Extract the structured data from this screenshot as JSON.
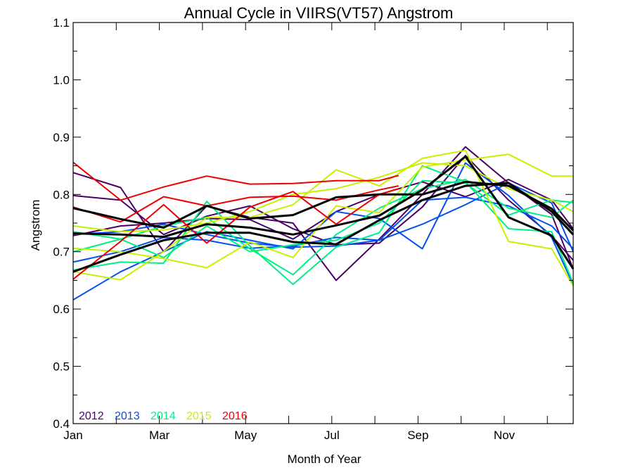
{
  "chart_data": {
    "type": "line",
    "title": "Annual Cycle in VIIRS(VT57) Angstrom",
    "xlabel": "Month of Year",
    "ylabel": "Angstrom",
    "xlim": [
      1,
      12.6
    ],
    "ylim": [
      0.4,
      1.1
    ],
    "x_ticks": [
      {
        "value": 1,
        "label": "Jan"
      },
      {
        "value": 3,
        "label": "Mar"
      },
      {
        "value": 5,
        "label": "May"
      },
      {
        "value": 7,
        "label": "Jul"
      },
      {
        "value": 9,
        "label": "Sep"
      },
      {
        "value": 11,
        "label": "Nov"
      }
    ],
    "x_minor_ticks": [
      2,
      4,
      6,
      8,
      10,
      12
    ],
    "y_ticks": [
      0.4,
      0.5,
      0.6,
      0.7,
      0.8,
      0.9,
      1.0,
      1.1
    ],
    "grid": false,
    "legend": {
      "placement": "bottom-left",
      "entries": [
        {
          "label": "2012",
          "color": "#4b0066"
        },
        {
          "label": "2013",
          "color": "#0050f0"
        },
        {
          "label": "2014",
          "color": "#00f080"
        },
        {
          "label": "2015",
          "color": "#c8f000"
        },
        {
          "label": "2016",
          "color": "#f00000"
        }
      ]
    },
    "series": [
      {
        "group": "2012",
        "color": "#4b0066",
        "width": 2,
        "x": [
          1,
          2.1,
          3.1,
          4.1,
          5.1,
          6.1,
          7.1,
          8.1,
          9.1,
          10.1,
          11.1,
          12.1,
          12.6
        ],
        "y": [
          0.838,
          0.812,
          0.7,
          0.78,
          0.76,
          0.75,
          0.65,
          0.722,
          0.8,
          0.883,
          0.82,
          0.765,
          0.67
        ]
      },
      {
        "group": "2012",
        "color": "#4b0066",
        "width": 2,
        "x": [
          1,
          2.1,
          3.1,
          4.1,
          5.1,
          6.1,
          7.1,
          8.1,
          9.1,
          10.1,
          11.1,
          12.1,
          12.6
        ],
        "y": [
          0.798,
          0.79,
          0.73,
          0.762,
          0.78,
          0.74,
          0.712,
          0.715,
          0.778,
          0.868,
          0.79,
          0.728,
          0.685
        ]
      },
      {
        "group": "2012",
        "color": "#4b0066",
        "width": 2,
        "x": [
          1,
          2.1,
          3.1,
          4.1,
          5.1,
          6.1,
          7.1,
          8.1,
          9.1,
          10.1,
          11.1,
          12.1,
          12.6
        ],
        "y": [
          0.728,
          0.745,
          0.75,
          0.758,
          0.756,
          0.722,
          0.77,
          0.8,
          0.822,
          0.796,
          0.826,
          0.79,
          0.74
        ]
      },
      {
        "group": "2013",
        "color": "#0050f0",
        "width": 2,
        "x": [
          1,
          2.1,
          3.1,
          4.1,
          5.1,
          6.1,
          7.1,
          8.1,
          9.1,
          10.1,
          11.1,
          12.1,
          12.6
        ],
        "y": [
          0.616,
          0.665,
          0.7,
          0.735,
          0.72,
          0.705,
          0.77,
          0.758,
          0.705,
          0.855,
          0.798,
          0.725,
          0.642
        ]
      },
      {
        "group": "2013",
        "color": "#0050f0",
        "width": 2,
        "x": [
          1,
          2.1,
          3.1,
          4.1,
          5.1,
          6.1,
          7.1,
          8.1,
          9.1,
          10.1,
          11.1,
          12.1,
          12.6
        ],
        "y": [
          0.682,
          0.7,
          0.725,
          0.72,
          0.706,
          0.71,
          0.725,
          0.72,
          0.748,
          0.782,
          0.82,
          0.785,
          0.7
        ]
      },
      {
        "group": "2013",
        "color": "#0050f0",
        "width": 2,
        "x": [
          1,
          2.1,
          3.1,
          4.1,
          5.1,
          6.1,
          7.1,
          8.1,
          9.1,
          10.1,
          11.1,
          12.1,
          12.6
        ],
        "y": [
          0.73,
          0.735,
          0.748,
          0.73,
          0.715,
          0.708,
          0.71,
          0.72,
          0.79,
          0.795,
          0.78,
          0.745,
          0.705
        ]
      },
      {
        "group": "2014",
        "color": "#00f080",
        "width": 2,
        "x": [
          1,
          2.1,
          3.1,
          4.1,
          5.1,
          6.1,
          7.1,
          8.1,
          9.1,
          10.1,
          11.1,
          12.1,
          12.6
        ],
        "y": [
          0.668,
          0.682,
          0.68,
          0.788,
          0.71,
          0.643,
          0.708,
          0.733,
          0.85,
          0.822,
          0.74,
          0.735,
          0.645
        ]
      },
      {
        "group": "2014",
        "color": "#00f080",
        "width": 2,
        "x": [
          1,
          2.1,
          3.1,
          4.1,
          5.1,
          6.1,
          7.1,
          8.1,
          9.1,
          10.1,
          11.1,
          12.1,
          12.6
        ],
        "y": [
          0.735,
          0.722,
          0.745,
          0.76,
          0.705,
          0.66,
          0.73,
          0.776,
          0.81,
          0.826,
          0.776,
          0.76,
          0.79
        ]
      },
      {
        "group": "2014",
        "color": "#00f080",
        "width": 2,
        "x": [
          1,
          2.1,
          3.1,
          4.1,
          5.1,
          6.1,
          7.1,
          8.1,
          9.1,
          10.1,
          11.1,
          12.1,
          12.6
        ],
        "y": [
          0.7,
          0.722,
          0.69,
          0.745,
          0.7,
          0.712,
          0.72,
          0.75,
          0.824,
          0.82,
          0.764,
          0.79,
          0.786
        ]
      },
      {
        "group": "2015",
        "color": "#c8f000",
        "width": 2,
        "x": [
          1,
          2.1,
          3.1,
          4.1,
          5.1,
          6.1,
          7.1,
          8.1,
          9.1,
          10.1,
          11.1,
          12.1,
          12.6
        ],
        "y": [
          0.706,
          0.7,
          0.688,
          0.672,
          0.717,
          0.69,
          0.78,
          0.768,
          0.848,
          0.86,
          0.87,
          0.832,
          0.832
        ]
      },
      {
        "group": "2015",
        "color": "#c8f000",
        "width": 2,
        "x": [
          1,
          2.1,
          3.1,
          4.1,
          5.1,
          6.1,
          7.1,
          8.1,
          9.1,
          10.1,
          11.1,
          12.1,
          12.6
        ],
        "y": [
          0.665,
          0.651,
          0.7,
          0.76,
          0.76,
          0.782,
          0.843,
          0.815,
          0.863,
          0.877,
          0.718,
          0.705,
          0.64
        ]
      },
      {
        "group": "2015",
        "color": "#c8f000",
        "width": 2,
        "x": [
          1,
          2.1,
          3.1,
          4.1,
          5.1,
          6.1,
          7.1,
          8.1,
          9.1,
          10.1,
          11.1,
          12.1,
          12.6
        ],
        "y": [
          0.745,
          0.735,
          0.738,
          0.75,
          0.77,
          0.8,
          0.81,
          0.83,
          0.855,
          0.85,
          0.81,
          0.79,
          0.77
        ]
      },
      {
        "group": "2016",
        "color": "#f00000",
        "width": 2,
        "x": [
          1,
          2.1,
          3.1,
          4.1,
          5.1,
          6.1,
          7.1,
          8.1,
          8.55
        ],
        "y": [
          0.856,
          0.79,
          0.813,
          0.832,
          0.818,
          0.819,
          0.824,
          0.824,
          0.833
        ]
      },
      {
        "group": "2016",
        "color": "#f00000",
        "width": 2,
        "x": [
          1,
          2.1,
          3.1,
          4.1,
          5.1,
          6.1,
          7.1,
          8.1,
          8.55
        ],
        "y": [
          0.778,
          0.752,
          0.796,
          0.78,
          0.795,
          0.797,
          0.79,
          0.808,
          0.815
        ]
      },
      {
        "group": "2016",
        "color": "#f00000",
        "width": 2,
        "x": [
          1,
          2.1,
          3.1,
          4.1,
          5.1,
          6.1,
          7.1,
          8.1,
          8.55
        ],
        "y": [
          0.652,
          0.718,
          0.782,
          0.715,
          0.778,
          0.805,
          0.748,
          0.8,
          0.81
        ]
      },
      {
        "group": "mean",
        "color": "#000000",
        "width": 3,
        "x": [
          1,
          2.1,
          3.1,
          4.1,
          5.1,
          6.1,
          7.1,
          8.1,
          9.1,
          10.1,
          11.1,
          12.1,
          12.6
        ],
        "y": [
          0.776,
          0.757,
          0.742,
          0.78,
          0.758,
          0.764,
          0.795,
          0.8,
          0.8,
          0.822,
          0.815,
          0.775,
          0.737
        ]
      },
      {
        "group": "mean",
        "color": "#000000",
        "width": 3,
        "x": [
          1,
          2.1,
          3.1,
          4.1,
          5.1,
          6.1,
          7.1,
          8.1,
          9.1,
          10.1,
          11.1,
          12.1,
          12.6
        ],
        "y": [
          0.732,
          0.73,
          0.726,
          0.748,
          0.742,
          0.73,
          0.746,
          0.763,
          0.808,
          0.866,
          0.76,
          0.728,
          0.67
        ]
      },
      {
        "group": "mean",
        "color": "#000000",
        "width": 3,
        "x": [
          1,
          2.1,
          3.1,
          4.1,
          5.1,
          6.1,
          7.1,
          8.1,
          9.1,
          10.1,
          11.1,
          12.1,
          12.6
        ],
        "y": [
          0.665,
          0.695,
          0.72,
          0.733,
          0.733,
          0.717,
          0.713,
          0.755,
          0.79,
          0.815,
          0.82,
          0.77,
          0.73
        ]
      }
    ]
  }
}
